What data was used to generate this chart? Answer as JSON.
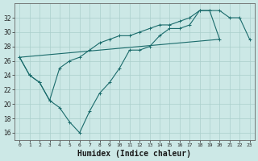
{
  "xlabel": "Humidex (Indice chaleur)",
  "ylabel": "",
  "background_color": "#cce8e6",
  "line_color": "#1a6b6b",
  "grid_color": "#aacfcc",
  "x_hours": [
    0,
    1,
    2,
    3,
    4,
    5,
    6,
    7,
    8,
    9,
    10,
    11,
    12,
    13,
    14,
    15,
    16,
    17,
    18,
    19,
    20,
    21,
    22,
    23
  ],
  "line1_y": [
    26.5,
    24.0,
    23.0,
    20.5,
    19.5,
    17.5,
    16.0,
    19.0,
    21.5,
    23.0,
    25.0,
    27.5,
    27.5,
    28.0,
    29.5,
    30.5,
    30.5,
    31.0,
    33.0,
    33.0,
    33.0,
    32.0,
    32.0,
    29.0
  ],
  "line2_y": [
    26.5,
    24.0,
    23.0,
    20.5,
    25.0,
    26.0,
    26.5,
    27.5,
    28.5,
    29.0,
    29.5,
    29.5,
    30.0,
    30.5,
    31.0,
    31.0,
    31.5,
    32.0,
    33.0,
    33.0,
    29.0,
    null,
    null,
    null
  ],
  "line3_x": [
    0,
    20
  ],
  "line3_y": [
    26.5,
    29.0
  ],
  "ylim": [
    15,
    34
  ],
  "xlim": [
    -0.5,
    23.5
  ],
  "yticks": [
    16,
    18,
    20,
    22,
    24,
    26,
    28,
    30,
    32
  ],
  "xticks": [
    0,
    1,
    2,
    3,
    4,
    5,
    6,
    7,
    8,
    9,
    10,
    11,
    12,
    13,
    14,
    15,
    16,
    17,
    18,
    19,
    20,
    21,
    22,
    23
  ],
  "xlabel_fontsize": 7,
  "xlabel_fontweight": "bold",
  "xtick_fontsize": 4.5,
  "ytick_fontsize": 5.5
}
